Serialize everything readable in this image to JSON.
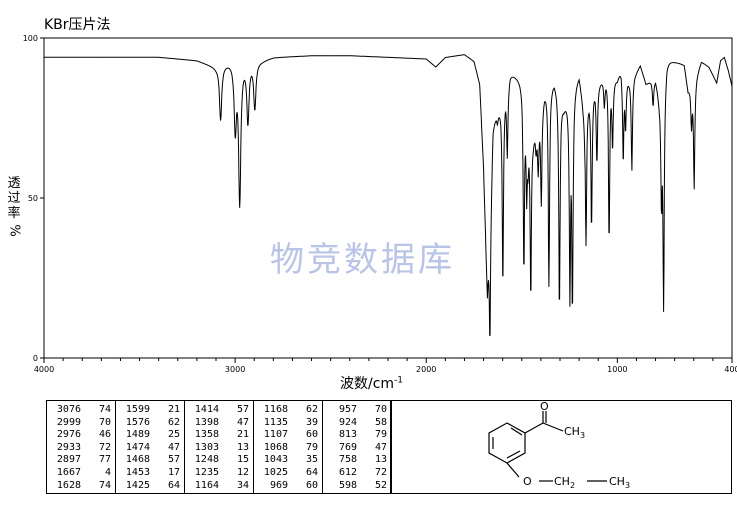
{
  "header": {
    "method": "KBr压片法"
  },
  "watermark": "物竞数据库",
  "chart_data": {
    "type": "line",
    "xlabel_main": "波数/cm",
    "xlabel_exp": "-1",
    "ylabel_chars": [
      "透",
      "过",
      "率"
    ],
    "ylabel_unit": "%",
    "xlim": [
      4000,
      400
    ],
    "ylim": [
      0,
      100
    ],
    "x_ticks": [
      4000,
      3000,
      2000,
      1000,
      400
    ],
    "y_ticks": [
      0,
      50,
      100
    ],
    "x_tick_labels": [
      "4000",
      "3000",
      "2000",
      "1000",
      "400"
    ],
    "y_tick_labels": [
      "0",
      "50",
      "100"
    ],
    "baseline_points": [
      [
        4000,
        94
      ],
      [
        3800,
        94
      ],
      [
        3600,
        94
      ],
      [
        3400,
        94
      ],
      [
        3200,
        93
      ],
      [
        3100,
        91
      ],
      [
        3020,
        93
      ],
      [
        2860,
        93
      ],
      [
        2800,
        94
      ],
      [
        2600,
        94.5
      ],
      [
        2400,
        94.5
      ],
      [
        2200,
        94
      ],
      [
        2000,
        93.5
      ],
      [
        1950,
        91
      ],
      [
        1900,
        94
      ],
      [
        1800,
        95
      ],
      [
        1750,
        93
      ],
      [
        1720,
        86
      ],
      [
        1700,
        60
      ],
      [
        1680,
        20
      ],
      [
        1650,
        74
      ],
      [
        1610,
        80
      ],
      [
        1560,
        90
      ],
      [
        1500,
        88
      ],
      [
        1440,
        70
      ],
      [
        1380,
        85
      ],
      [
        1330,
        88
      ],
      [
        1280,
        80
      ],
      [
        1200,
        90
      ],
      [
        1180,
        82
      ],
      [
        1120,
        86
      ],
      [
        1080,
        88
      ],
      [
        1050,
        90
      ],
      [
        1000,
        88
      ],
      [
        980,
        92
      ],
      [
        940,
        88
      ],
      [
        900,
        90
      ],
      [
        880,
        92
      ],
      [
        850,
        86
      ],
      [
        800,
        88
      ],
      [
        780,
        82
      ],
      [
        740,
        94
      ],
      [
        700,
        93
      ],
      [
        650,
        92
      ],
      [
        630,
        84
      ],
      [
        580,
        90
      ],
      [
        560,
        93
      ],
      [
        520,
        91
      ],
      [
        480,
        86
      ],
      [
        460,
        93
      ],
      [
        440,
        94
      ],
      [
        420,
        90
      ],
      [
        400,
        85
      ]
    ],
    "peaks": [
      [
        3076,
        74
      ],
      [
        2999,
        70
      ],
      [
        2976,
        46
      ],
      [
        2933,
        72
      ],
      [
        2897,
        77
      ],
      [
        1667,
        4
      ],
      [
        1628,
        74
      ],
      [
        1599,
        21
      ],
      [
        1576,
        62
      ],
      [
        1489,
        25
      ],
      [
        1474,
        47
      ],
      [
        1468,
        57
      ],
      [
        1453,
        17
      ],
      [
        1425,
        64
      ],
      [
        1414,
        57
      ],
      [
        1398,
        47
      ],
      [
        1358,
        21
      ],
      [
        1303,
        13
      ],
      [
        1248,
        15
      ],
      [
        1235,
        12
      ],
      [
        1164,
        34
      ],
      [
        1168,
        62
      ],
      [
        1135,
        39
      ],
      [
        1107,
        60
      ],
      [
        1068,
        79
      ],
      [
        1043,
        35
      ],
      [
        1025,
        64
      ],
      [
        969,
        60
      ],
      [
        957,
        70
      ],
      [
        924,
        58
      ],
      [
        813,
        79
      ],
      [
        769,
        47
      ],
      [
        758,
        13
      ],
      [
        612,
        72
      ],
      [
        598,
        52
      ]
    ],
    "peak_table": [
      [
        [
          "3076",
          "74"
        ],
        [
          "2999",
          "70"
        ],
        [
          "2976",
          "46"
        ],
        [
          "2933",
          "72"
        ],
        [
          "2897",
          "77"
        ],
        [
          "1667",
          "4"
        ],
        [
          "1628",
          "74"
        ]
      ],
      [
        [
          "1599",
          "21"
        ],
        [
          "1576",
          "62"
        ],
        [
          "1489",
          "25"
        ],
        [
          "1474",
          "47"
        ],
        [
          "1468",
          "57"
        ],
        [
          "1453",
          "17"
        ],
        [
          "1425",
          "64"
        ]
      ],
      [
        [
          "1414",
          "57"
        ],
        [
          "1398",
          "47"
        ],
        [
          "1358",
          "21"
        ],
        [
          "1303",
          "13"
        ],
        [
          "1248",
          "15"
        ],
        [
          "1235",
          "12"
        ],
        [
          "1164",
          "34"
        ]
      ],
      [
        [
          "1168",
          "62"
        ],
        [
          "1135",
          "39"
        ],
        [
          "1107",
          "60"
        ],
        [
          "1068",
          "79"
        ],
        [
          "1043",
          "35"
        ],
        [
          "1025",
          "64"
        ],
        [
          "969",
          "60"
        ]
      ],
      [
        [
          "957",
          "70"
        ],
        [
          "924",
          "58"
        ],
        [
          "813",
          "79"
        ],
        [
          "769",
          "47"
        ],
        [
          "758",
          "13"
        ],
        [
          "612",
          "72"
        ],
        [
          "598",
          "52"
        ]
      ]
    ]
  },
  "structure": {
    "carbonyl_label": "O",
    "methyl_label": "CH",
    "methyl_sub": "3",
    "ether_label": "O",
    "ch2_label": "CH",
    "ch2_sub": "2",
    "ch3_label": "CH",
    "ch3_sub": "3"
  },
  "colors": {
    "line": "#000000",
    "watermark": "#b9c4e6"
  }
}
